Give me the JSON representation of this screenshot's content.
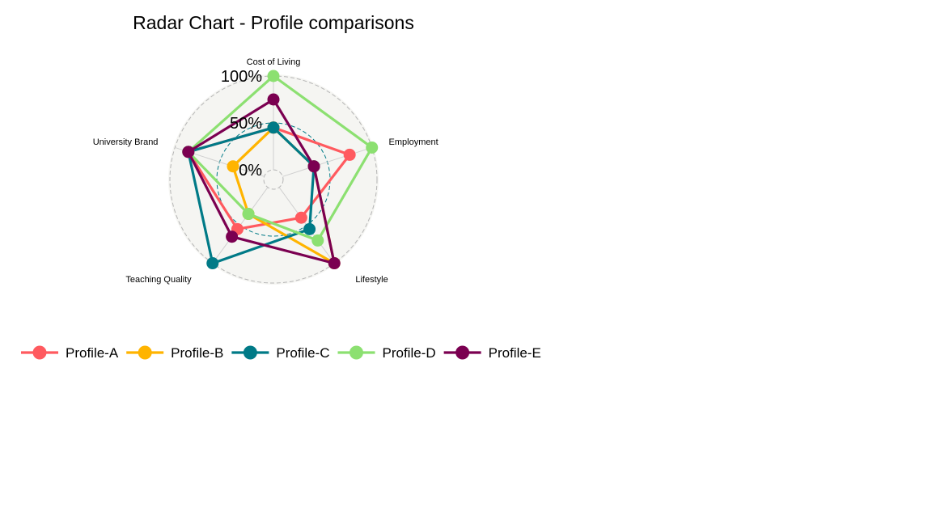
{
  "chart_data": {
    "type": "radar",
    "title": "Radar Chart - Profile comparisons",
    "axes": [
      "Cost of Living",
      "Employment",
      "Lifestyle",
      "Teaching Quality",
      "University Brand"
    ],
    "grid_labels": [
      "0%",
      "50%",
      "100%"
    ],
    "range": [
      0,
      100
    ],
    "legend_position": "bottom-left",
    "series": [
      {
        "name": "Profile-A",
        "color": "#FF5A5F",
        "values": [
          45,
          75,
          40,
          55,
          85
        ]
      },
      {
        "name": "Profile-B",
        "color": "#FFB400",
        "values": [
          45,
          35,
          100,
          35,
          35
        ]
      },
      {
        "name": "Profile-C",
        "color": "#007A87",
        "values": [
          45,
          35,
          55,
          100,
          85
        ]
      },
      {
        "name": "Profile-D",
        "color": "#8CE071",
        "values": [
          100,
          100,
          70,
          35,
          85
        ]
      },
      {
        "name": "Profile-E",
        "color": "#7B0051",
        "values": [
          75,
          35,
          100,
          65,
          85
        ]
      }
    ],
    "grid": true
  }
}
